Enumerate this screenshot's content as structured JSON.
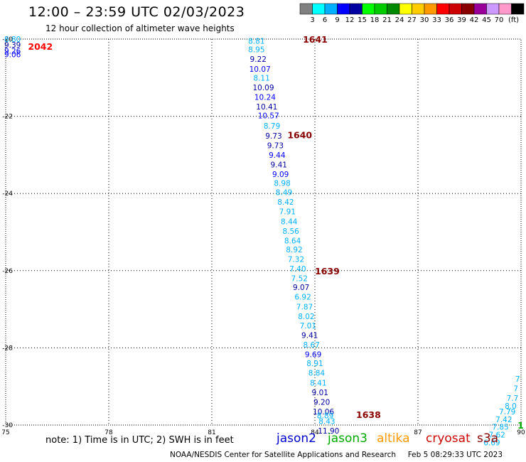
{
  "header": {
    "title": "12:00 – 23:59 UTC 02/03/2023",
    "subtitle": "12 hour collection of altimeter wave heights"
  },
  "colorbar": {
    "unit": "(ft)",
    "colors": [
      "#808080",
      "#00ffff",
      "#00b0ff",
      "#0000ff",
      "#0000a0",
      "#00ff00",
      "#00cc00",
      "#008800",
      "#ffff00",
      "#ffcc00",
      "#ff9900",
      "#ff0000",
      "#cc0000",
      "#880000",
      "#990099",
      "#cc99ff",
      "#ff99cc",
      "#000000"
    ],
    "labels": [
      "3",
      "6",
      "9",
      "12",
      "15",
      "18",
      "21",
      "24",
      "27",
      "30",
      "33",
      "36",
      "39",
      "42",
      "45",
      "70"
    ]
  },
  "footer": {
    "note": "note:  1) Time is in UTC;  2) SWH is in feet",
    "credit": "NOAA/NESDIS Center for Satellite Applications and Research",
    "timestamp": "Feb  5 08:29:33 UTC 2023"
  },
  "satellites": [
    {
      "name": "jason2",
      "color": "#0000cc"
    },
    {
      "name": "jason3",
      "color": "#00aa00"
    },
    {
      "name": "altika",
      "color": "#ff9900"
    },
    {
      "name": "cryosat",
      "color": "#cc0000"
    },
    {
      "name": "s3a",
      "color": "#880000"
    }
  ],
  "chart_data": {
    "type": "scatter",
    "xlim": [
      75,
      90
    ],
    "ylim": [
      -30,
      -20
    ],
    "x_ticks": [
      "75",
      "78",
      "81",
      "84",
      "87",
      "90"
    ],
    "y_ticks": [
      "-20",
      "-22",
      "-24",
      "-26",
      "-28",
      "-30"
    ],
    "grid": true,
    "points": [
      {
        "x": 75.2,
        "y": -20.0,
        "label": "8.80",
        "color": "#00b0ff"
      },
      {
        "x": 75.2,
        "y": -20.15,
        "label": "9.39",
        "color": "#0000a0"
      },
      {
        "x": 75.2,
        "y": -20.3,
        "label": "9.26",
        "color": "#0000ff"
      },
      {
        "x": 75.2,
        "y": -20.4,
        "label": "9.06",
        "color": "#0000ff"
      },
      {
        "x": 82.3,
        "y": -20.05,
        "label": "8.81",
        "color": "#00b0ff"
      },
      {
        "x": 82.3,
        "y": -20.27,
        "label": "8.95",
        "color": "#00b0ff"
      },
      {
        "x": 82.35,
        "y": -20.52,
        "label": "9.22",
        "color": "#0000a0"
      },
      {
        "x": 82.4,
        "y": -20.77,
        "label": "10.07",
        "color": "#0000ff"
      },
      {
        "x": 82.45,
        "y": -21.0,
        "label": "8.11",
        "color": "#00b0ff"
      },
      {
        "x": 82.5,
        "y": -21.25,
        "label": "10.09",
        "color": "#0000a0"
      },
      {
        "x": 82.55,
        "y": -21.5,
        "label": "10.24",
        "color": "#0000ff"
      },
      {
        "x": 82.6,
        "y": -21.75,
        "label": "10.41",
        "color": "#0000a0"
      },
      {
        "x": 82.65,
        "y": -21.98,
        "label": "10.57",
        "color": "#0000ff"
      },
      {
        "x": 82.75,
        "y": -22.25,
        "label": "8.79",
        "color": "#00b0ff"
      },
      {
        "x": 82.8,
        "y": -22.5,
        "label": "9.73",
        "color": "#0000a0"
      },
      {
        "x": 82.85,
        "y": -22.75,
        "label": "9.73",
        "color": "#0000a0"
      },
      {
        "x": 82.9,
        "y": -23.0,
        "label": "9.44",
        "color": "#0000ff"
      },
      {
        "x": 82.95,
        "y": -23.25,
        "label": "9.41",
        "color": "#0000a0"
      },
      {
        "x": 83.0,
        "y": -23.5,
        "label": "9.09",
        "color": "#0000ff"
      },
      {
        "x": 83.05,
        "y": -23.73,
        "label": "8.98",
        "color": "#00b0ff"
      },
      {
        "x": 83.1,
        "y": -23.97,
        "label": "8.49",
        "color": "#00b0ff"
      },
      {
        "x": 83.15,
        "y": -24.22,
        "label": "8.42",
        "color": "#00b0ff"
      },
      {
        "x": 83.2,
        "y": -24.47,
        "label": "7.91",
        "color": "#00b0ff"
      },
      {
        "x": 83.25,
        "y": -24.72,
        "label": "8.44",
        "color": "#00b0ff"
      },
      {
        "x": 83.3,
        "y": -24.97,
        "label": "8.56",
        "color": "#00b0ff"
      },
      {
        "x": 83.35,
        "y": -25.22,
        "label": "8.64",
        "color": "#00b0ff"
      },
      {
        "x": 83.4,
        "y": -25.45,
        "label": "8.92",
        "color": "#00b0ff"
      },
      {
        "x": 83.45,
        "y": -25.7,
        "label": "7.32",
        "color": "#00b0ff"
      },
      {
        "x": 83.5,
        "y": -25.95,
        "label": "7.40",
        "color": "#00b0ff"
      },
      {
        "x": 83.55,
        "y": -26.2,
        "label": "7.52",
        "color": "#00b0ff"
      },
      {
        "x": 83.6,
        "y": -26.43,
        "label": "9.07",
        "color": "#0000a0"
      },
      {
        "x": 83.65,
        "y": -26.68,
        "label": "6.92",
        "color": "#00b0ff"
      },
      {
        "x": 83.7,
        "y": -26.93,
        "label": "7.87",
        "color": "#00b0ff"
      },
      {
        "x": 83.75,
        "y": -27.18,
        "label": "8.02",
        "color": "#00b0ff"
      },
      {
        "x": 83.8,
        "y": -27.42,
        "label": "7.01",
        "color": "#00b0ff"
      },
      {
        "x": 83.85,
        "y": -27.67,
        "label": "9.41",
        "color": "#0000a0"
      },
      {
        "x": 83.9,
        "y": -27.92,
        "label": "8.67",
        "color": "#00b0ff"
      },
      {
        "x": 83.95,
        "y": -28.17,
        "label": "9.69",
        "color": "#0000ff"
      },
      {
        "x": 84.0,
        "y": -28.4,
        "label": "8.91",
        "color": "#00b0ff"
      },
      {
        "x": 84.05,
        "y": -28.65,
        "label": "8.84",
        "color": "#00b0ff"
      },
      {
        "x": 84.1,
        "y": -28.9,
        "label": "8.41",
        "color": "#00b0ff"
      },
      {
        "x": 84.15,
        "y": -29.15,
        "label": "9.01",
        "color": "#0000a0"
      },
      {
        "x": 84.2,
        "y": -29.4,
        "label": "9.20",
        "color": "#0000a0"
      },
      {
        "x": 84.25,
        "y": -29.65,
        "label": "10.06",
        "color": "#0000a0"
      },
      {
        "x": 84.3,
        "y": -29.75,
        "label": "8.89",
        "color": "#00b0ff"
      },
      {
        "x": 84.35,
        "y": -29.9,
        "label": "8.43",
        "color": "#00b0ff"
      },
      {
        "x": 84.4,
        "y": -30.15,
        "label": "11.90",
        "color": "#0000a0"
      },
      {
        "x": 89.9,
        "y": -28.8,
        "label": "7",
        "color": "#00b0ff"
      },
      {
        "x": 89.85,
        "y": -29.05,
        "label": "7",
        "color": "#00b0ff"
      },
      {
        "x": 89.75,
        "y": -29.3,
        "label": "7.7",
        "color": "#00b0ff"
      },
      {
        "x": 89.7,
        "y": -29.5,
        "label": "8.0",
        "color": "#00b0ff"
      },
      {
        "x": 89.6,
        "y": -29.65,
        "label": "7.79",
        "color": "#00b0ff"
      },
      {
        "x": 89.5,
        "y": -29.85,
        "label": "7.42",
        "color": "#00b0ff"
      },
      {
        "x": 89.4,
        "y": -30.05,
        "label": "7.85",
        "color": "#00b0ff"
      },
      {
        "x": 89.3,
        "y": -30.25,
        "label": "7.62",
        "color": "#00b0ff"
      },
      {
        "x": 89.15,
        "y": -30.45,
        "label": "6.69",
        "color": "#00b0ff"
      }
    ],
    "pass_labels": [
      {
        "x": 75.65,
        "y": -20.18,
        "label": "2042",
        "color": "#ff0000"
      },
      {
        "x": 83.65,
        "y": -20.0,
        "label": "1641",
        "color": "#880000"
      },
      {
        "x": 83.2,
        "y": -22.48,
        "label": "1640",
        "color": "#880000"
      },
      {
        "x": 84.0,
        "y": -26.0,
        "label": "1639",
        "color": "#880000"
      },
      {
        "x": 85.2,
        "y": -29.72,
        "label": "1638",
        "color": "#880000"
      },
      {
        "x": 89.9,
        "y": -30.0,
        "label": "1",
        "color": "#00aa00"
      }
    ]
  }
}
